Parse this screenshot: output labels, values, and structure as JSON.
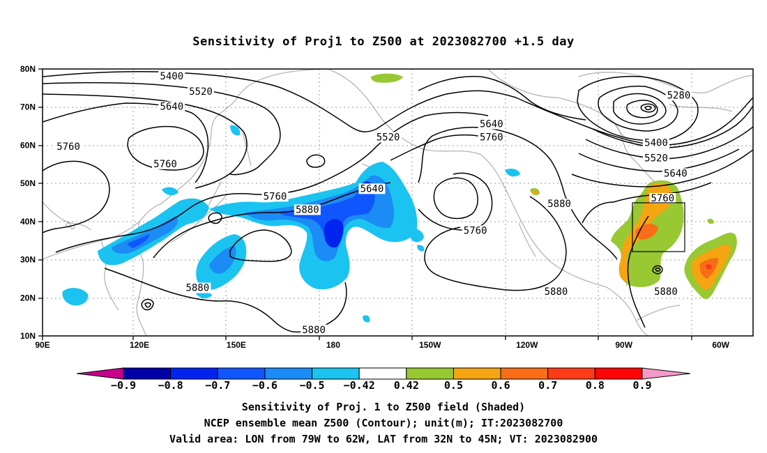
{
  "title": "Sensitivity of Proj1 to Z500 at 2023082700 +1.5 day",
  "axes": {
    "x_ticks": [
      "90E",
      "120E",
      "150E",
      "180",
      "150W",
      "120W",
      "90W",
      "60W"
    ],
    "y_ticks": [
      "10N",
      "20N",
      "30N",
      "40N",
      "50N",
      "60N",
      "70N",
      "80N"
    ],
    "x_range_lon": [
      90,
      310
    ],
    "y_range_lat": [
      10,
      80
    ],
    "grid": "dotted"
  },
  "contours": {
    "units": "m",
    "labels": [
      {
        "text": "5400",
        "lon": 130,
        "lat": 78
      },
      {
        "text": "5520",
        "lon": 139,
        "lat": 74
      },
      {
        "text": "5640",
        "lon": 130,
        "lat": 70
      },
      {
        "text": "5760",
        "lon": 98,
        "lat": 59.5
      },
      {
        "text": "5760",
        "lon": 128,
        "lat": 55
      },
      {
        "text": "5520",
        "lon": 197,
        "lat": 62
      },
      {
        "text": "5640",
        "lon": 192,
        "lat": 48.5
      },
      {
        "text": "5760",
        "lon": 162,
        "lat": 46.5
      },
      {
        "text": "5880",
        "lon": 172,
        "lat": 43
      },
      {
        "text": "5640",
        "lon": 229,
        "lat": 65.5
      },
      {
        "text": "5760",
        "lon": 229,
        "lat": 62
      },
      {
        "text": "5880",
        "lon": 250,
        "lat": 44.5
      },
      {
        "text": "5760",
        "lon": 224,
        "lat": 37.5
      },
      {
        "text": "5880",
        "lon": 138,
        "lat": 22.5
      },
      {
        "text": "5880",
        "lon": 249,
        "lat": 21.5
      },
      {
        "text": "5880",
        "lon": 174,
        "lat": 11.5
      },
      {
        "text": "5280",
        "lon": 287,
        "lat": 73
      },
      {
        "text": "5400",
        "lon": 280,
        "lat": 60.5
      },
      {
        "text": "5520",
        "lon": 280,
        "lat": 56.5
      },
      {
        "text": "5640",
        "lon": 286,
        "lat": 52.5
      },
      {
        "text": "5760",
        "lon": 282,
        "lat": 46
      },
      {
        "text": "5880",
        "lon": 283,
        "lat": 21.5
      }
    ]
  },
  "shaded_regions": [
    {
      "sign": "negative",
      "level": "-0.5",
      "area": "East China / Yellow Sea",
      "lon": [
        110,
        135
      ],
      "lat": [
        28,
        40
      ]
    },
    {
      "sign": "negative",
      "level": "-0.6",
      "area": "North Pacific jet",
      "lon": [
        150,
        200
      ],
      "lat": [
        35,
        52
      ]
    },
    {
      "sign": "negative",
      "level": "-0.7",
      "area": "Central Pacific core",
      "lon": [
        178,
        190
      ],
      "lat": [
        30,
        40
      ]
    },
    {
      "sign": "positive",
      "level": "0.6",
      "area": "US East Coast",
      "lon": [
        279,
        298
      ],
      "lat": [
        22,
        45
      ]
    },
    {
      "sign": "positive",
      "level": "0.6",
      "area": "Western Atlantic",
      "lon": [
        300,
        315
      ],
      "lat": [
        19,
        34
      ]
    }
  ],
  "valid_box": {
    "lon": [
      281,
      298
    ],
    "lat": [
      32,
      45
    ]
  },
  "colorbar": {
    "labels": [
      "-0.9",
      "-0.8",
      "-0.7",
      "-0.6",
      "-0.5",
      "-0.42",
      "0.42",
      "0.5",
      "0.6",
      "0.7",
      "0.8",
      "0.9"
    ],
    "colors": [
      "#0000a8",
      "#0024f0",
      "#1056ff",
      "#1b8bf5",
      "#1ac3f0",
      "#ffffff",
      "#98c832",
      "#f5a511",
      "#f86e16",
      "#ff3b17",
      "#ff0606"
    ],
    "under_color": "#c8008c",
    "over_color": "#f49ac8"
  },
  "caption": {
    "line1": "Sensitivity of Proj. 1 to Z500 field (Shaded)",
    "line2": "NCEP ensemble mean Z500 (Contour); unit(m); IT:2023082700",
    "line3": "Valid area: LON from 79W to 62W, LAT from 32N to 45N; VT: 2023082900"
  }
}
